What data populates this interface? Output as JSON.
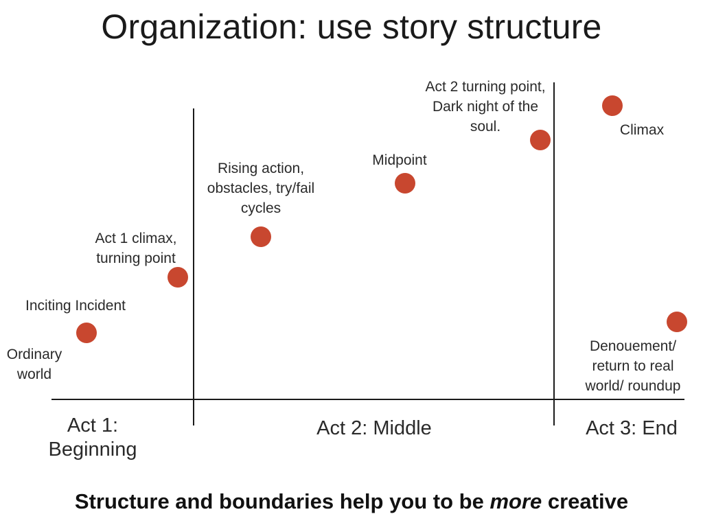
{
  "title": "Organization: use story structure",
  "points": [
    {
      "id": "ordinary-world",
      "lines": [
        "Ordinary",
        "world"
      ]
    },
    {
      "id": "inciting-incident",
      "lines": [
        "Inciting Incident"
      ]
    },
    {
      "id": "act1-climax",
      "lines": [
        "Act 1 climax,",
        "turning point"
      ]
    },
    {
      "id": "rising-action",
      "lines": [
        "Rising action,",
        "obstacles, try/fail",
        "cycles"
      ]
    },
    {
      "id": "midpoint",
      "lines": [
        "Midpoint"
      ]
    },
    {
      "id": "act2-turning-point",
      "lines": [
        "Act 2 turning point,",
        "Dark night of the",
        "soul."
      ]
    },
    {
      "id": "climax",
      "lines": [
        "Climax"
      ]
    },
    {
      "id": "denouement",
      "lines": [
        "Denouement/",
        "return to real",
        "world/ roundup"
      ]
    }
  ],
  "acts": [
    {
      "lines": [
        "Act 1:",
        "Beginning"
      ]
    },
    {
      "lines": [
        "Act 2: Middle"
      ]
    },
    {
      "lines": [
        "Act 3: End"
      ]
    }
  ],
  "footer": {
    "before": "Structure and boundaries help you to be ",
    "emphasis": "more",
    "after": " creative"
  },
  "colors": {
    "dot": "#c8472f",
    "lines": "#1a1a1a"
  }
}
